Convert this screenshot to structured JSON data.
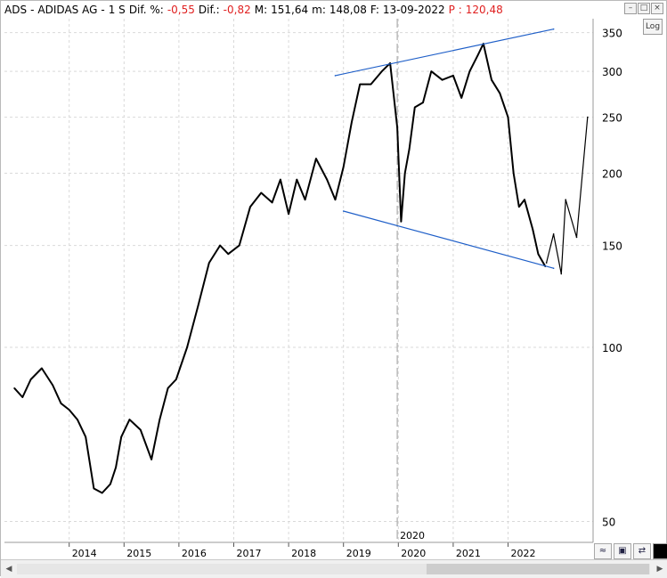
{
  "header": {
    "symbol": "ADS",
    "sep": "-",
    "name": "ADIDAS AG",
    "sep2": "-",
    "period": "1 S",
    "difpct_label": "Dif. %:",
    "difpct_value": "-0,55",
    "dif_label": "Dif.:",
    "dif_value": "-0,82",
    "max_label": "M:",
    "max_value": "151,64",
    "min_label": "m:",
    "min_value": "148,08",
    "date_label": "F:",
    "date_value": "13-09-2022",
    "price_label": "P :",
    "price_value": "120,48"
  },
  "controls": {
    "log_label": "Log",
    "zoom_icon": "zoom-icon",
    "save_icon": "save-icon",
    "sync_icon": "sync-icon",
    "color_icon": "color-square-icon"
  },
  "colors": {
    "price_line": "#000000",
    "trendline": "#1f5fc8",
    "grid": "#d9d9d9",
    "negative": "#e02020"
  },
  "chart_data": {
    "type": "line",
    "scale": "log",
    "title": "ADS - ADIDAS AG - 1 S",
    "xlabel": "",
    "ylabel": "",
    "ylim": [
      46,
      370
    ],
    "y_ticks": [
      50,
      100,
      150,
      200,
      250,
      300,
      350
    ],
    "x_ticks": [
      "2014",
      "2015",
      "2016",
      "2017",
      "2018",
      "2019",
      "2020",
      "2021",
      "2022"
    ],
    "x_marker_label": "2020",
    "grid": true,
    "series": [
      {
        "x": [
          2013.0,
          2013.15,
          2013.3,
          2013.5,
          2013.7,
          2013.85,
          2014.0,
          2014.15,
          2014.3,
          2014.45,
          2014.6,
          2014.75,
          2014.85,
          2014.95,
          2015.1,
          2015.3,
          2015.5,
          2015.65,
          2015.8,
          2015.95,
          2016.15,
          2016.35,
          2016.55,
          2016.75,
          2016.9,
          2017.1,
          2017.3,
          2017.5,
          2017.7,
          2017.85,
          2018.0,
          2018.15,
          2018.3,
          2018.5,
          2018.7,
          2018.85,
          2019.0,
          2019.15,
          2019.3,
          2019.5,
          2019.7,
          2019.85,
          2019.98,
          2020.05,
          2020.12,
          2020.2,
          2020.3,
          2020.45,
          2020.6,
          2020.8,
          2021.0,
          2021.15,
          2021.3,
          2021.45,
          2021.55,
          2021.7,
          2021.85,
          2022.0,
          2022.1,
          2022.2,
          2022.3,
          2022.45,
          2022.55,
          2022.68
        ],
        "values": [
          85,
          82,
          88,
          92,
          86,
          80,
          78,
          75,
          70,
          57,
          56,
          58,
          62,
          70,
          75,
          72,
          64,
          75,
          85,
          88,
          100,
          118,
          140,
          150,
          145,
          150,
          175,
          185,
          178,
          195,
          170,
          195,
          180,
          212,
          195,
          180,
          205,
          245,
          285,
          285,
          300,
          310,
          240,
          165,
          200,
          220,
          260,
          265,
          300,
          290,
          295,
          270,
          300,
          320,
          335,
          290,
          275,
          250,
          200,
          175,
          180,
          160,
          145,
          138
        ],
        "name": ""
      },
      {
        "x": [
          2018.85,
          2022.83
        ],
        "values": [
          295,
          355
        ],
        "name": ""
      },
      {
        "x": [
          2019.0,
          2022.83
        ],
        "values": [
          172,
          137
        ],
        "name": ""
      },
      {
        "x": [
          2022.7,
          2022.83,
          2022.97,
          2023.05,
          2023.25,
          2023.45
        ],
        "values": [
          140,
          157,
          134,
          180,
          155,
          250
        ],
        "name": ""
      }
    ]
  }
}
